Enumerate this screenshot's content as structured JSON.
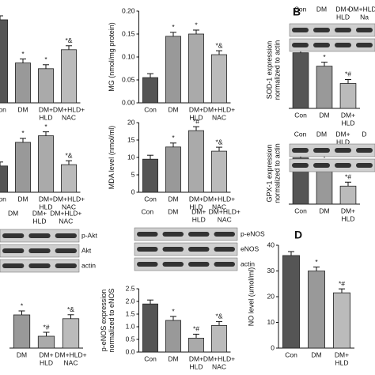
{
  "chart_data": [
    {
      "type": "bar",
      "categories": [
        [
          "Con"
        ],
        [
          "DM"
        ],
        [
          "DM+",
          "HLD"
        ],
        [
          "DM+HLD+",
          "NAC"
        ]
      ],
      "values": [
        0.875,
        0.42,
        0.36,
        0.56
      ],
      "annotations": [
        null,
        "*",
        "*",
        "*&"
      ],
      "colors": [
        "#555",
        "#999",
        "#aaa",
        "#bbb"
      ],
      "ylim": [
        0,
        1
      ]
    },
    {
      "type": "bar",
      "ylabel": "MG (nmol/mg protein)",
      "categories": [
        [
          "Con"
        ],
        [
          "DM"
        ],
        [
          "DM+",
          "HLD"
        ],
        [
          "DM+HLD+",
          "NAC"
        ]
      ],
      "values": [
        0.055,
        0.145,
        0.15,
        0.105
      ],
      "annotations": [
        null,
        "*",
        "*",
        "*&"
      ],
      "colors": [
        "#555",
        "#999",
        "#aaa",
        "#bbb"
      ],
      "ylim": [
        0,
        0.2
      ],
      "yticks": [
        {
          "value": 0,
          "label": "0.00"
        },
        {
          "value": 0.05,
          "label": "0.05"
        },
        {
          "value": 0.1,
          "label": "0.10"
        },
        {
          "value": 0.15,
          "label": "0.15"
        },
        {
          "value": 0.2,
          "label": "0.20"
        }
      ]
    },
    {
      "type": "bar",
      "panel": "B",
      "ylabel": [
        "SOD-1 expression",
        "normalized to actin"
      ],
      "blot": {
        "lanes": [
          [
            "Con"
          ],
          [
            "DM"
          ],
          [
            "DM+",
            "HLD"
          ],
          [
            "DM+HLD+",
            "Na"
          ]
        ]
      },
      "categories": [
        [
          "Con"
        ],
        [
          "DM"
        ],
        [
          "DM+",
          "HLD"
        ]
      ],
      "values": [
        2.9,
        2.2,
        1.3
      ],
      "annotations": [
        null,
        "*",
        "*#"
      ],
      "colors": [
        "#555",
        "#999",
        "#bbb"
      ],
      "ylim": [
        0,
        4
      ]
    },
    {
      "type": "bar",
      "categories": [
        [
          "Con"
        ],
        [
          "DM"
        ],
        [
          "DM+",
          "HLD"
        ],
        [
          "DM+HLD+",
          "NAC"
        ]
      ],
      "values": [
        0.4,
        0.76,
        0.86,
        0.42
      ],
      "annotations": [
        null,
        "*",
        "*",
        "*&"
      ],
      "colors": [
        "#555",
        "#999",
        "#aaa",
        "#bbb"
      ],
      "ylim": [
        0,
        1
      ]
    },
    {
      "type": "bar",
      "ylabel": "MDA level (nmol/ml)",
      "categories": [
        [
          "Con"
        ],
        [
          "DM"
        ],
        [
          "DM+",
          "HLD"
        ],
        [
          "DM+HLD+",
          "NAC"
        ]
      ],
      "values": [
        9.5,
        13,
        17.7,
        11.8
      ],
      "annotations": [
        null,
        "*",
        "*#",
        "*&"
      ],
      "colors": [
        "#555",
        "#999",
        "#aaa",
        "#bbb"
      ],
      "ylim": [
        0,
        20
      ],
      "yticks": [
        0,
        5,
        10,
        15,
        20
      ]
    },
    {
      "type": "bar",
      "ylabel": [
        "GPX-1 expression",
        "normalized to actin"
      ],
      "blot": {
        "lanes": [
          [
            "Con"
          ],
          [
            "DM"
          ],
          [
            "DM+",
            "HLD"
          ],
          [
            "D"
          ]
        ]
      },
      "categories": [
        [
          "Con"
        ],
        [
          "DM"
        ],
        [
          "DM+",
          "HLD"
        ]
      ],
      "values": [
        0.9,
        0.72,
        0.35
      ],
      "annotations": [
        null,
        "*",
        "*#"
      ],
      "colors": [
        "#555",
        "#999",
        "#bbb"
      ],
      "ylim": [
        0,
        1.2
      ]
    },
    {
      "type": "bar",
      "blot": {
        "lanes": [
          [
            "DM"
          ],
          [
            "DM+",
            "HLD"
          ],
          [
            "DM+HLD+",
            "NAC"
          ]
        ],
        "bands": [
          "p-Akt",
          "Akt",
          "actin"
        ]
      },
      "categories": [
        [
          "DM"
        ],
        [
          "DM+",
          "HLD"
        ],
        [
          "DM+HLD+",
          "NAC"
        ]
      ],
      "values": [
        0.7,
        0.25,
        0.62
      ],
      "annotations": [
        "*",
        "*#",
        "*&"
      ],
      "colors": [
        "#999",
        "#aaa",
        "#bbb"
      ],
      "ylim": [
        0,
        1
      ]
    },
    {
      "type": "bar",
      "ylabel": [
        "p-eNOS expression",
        "normalized to eNOS"
      ],
      "blot": {
        "lanes": [
          [
            "Con"
          ],
          [
            "DM"
          ],
          [
            "DM+",
            "HLD"
          ],
          [
            "DM+HLD+",
            "NAC"
          ]
        ],
        "bands": [
          "p-eNOS",
          "eNOS",
          "actin"
        ]
      },
      "categories": [
        [
          "Con"
        ],
        [
          "DM"
        ],
        [
          "DM+",
          "HLD"
        ],
        [
          "DM+HLD+",
          "NAC"
        ]
      ],
      "values": [
        1.9,
        1.25,
        0.55,
        1.05
      ],
      "annotations": [
        null,
        "*",
        "*#",
        "*&"
      ],
      "colors": [
        "#555",
        "#999",
        "#aaa",
        "#bbb"
      ],
      "ylim": [
        0,
        2.5
      ],
      "yticks": [
        {
          "value": 0,
          "label": "0.0"
        },
        {
          "value": 0.5,
          "label": "0.5"
        },
        {
          "value": 1,
          "label": "1.0"
        },
        {
          "value": 1.5,
          "label": "1.5"
        },
        {
          "value": 2,
          "label": "2.0"
        },
        {
          "value": 2.5,
          "label": "2.5"
        }
      ]
    },
    {
      "type": "bar",
      "panel": "D",
      "ylabel": "NO level (umol/ml)",
      "categories": [
        [
          "Con"
        ],
        [
          "DM"
        ],
        [
          "DM+",
          "HLD"
        ]
      ],
      "values": [
        36,
        30,
        21.5
      ],
      "annotations": [
        null,
        "*",
        "*#"
      ],
      "colors": [
        "#555",
        "#999",
        "#bbb"
      ],
      "ylim": [
        0,
        40
      ],
      "yticks": [
        0,
        10,
        20,
        30,
        40
      ]
    }
  ]
}
